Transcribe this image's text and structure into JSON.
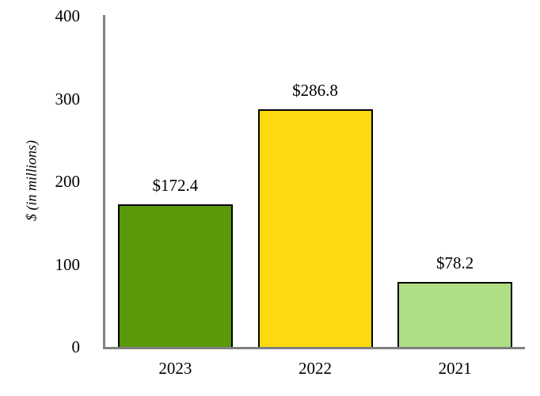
{
  "chart_data": {
    "type": "bar",
    "categories": [
      "2023",
      "2022",
      "2021"
    ],
    "values": [
      172.4,
      286.8,
      78.2
    ],
    "value_labels": [
      "$172.4",
      "$286.8",
      "$78.2"
    ],
    "bar_colors": [
      "#5A9908",
      "#FDD90F",
      "#AFDE85"
    ],
    "bar_border_color": "#000000",
    "title": "",
    "xlabel": "",
    "ylabel": "$ (in millions)",
    "ylim": [
      0,
      400
    ],
    "yticks": [
      0,
      100,
      200,
      300,
      400
    ],
    "axis_color": "#808080",
    "grid": false,
    "legend_position": "none",
    "background_color": "#FFFFFF"
  },
  "layout_note": "single bar chart, no title, value labels above bars"
}
